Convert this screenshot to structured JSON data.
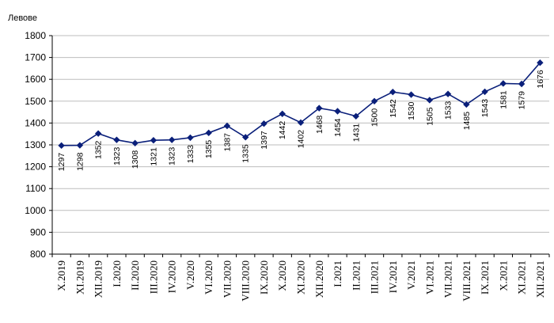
{
  "chart_data": {
    "type": "line",
    "ylabel": "Левове",
    "ylim": [
      800,
      1800
    ],
    "ytick_step": 100,
    "grid": "horizontal",
    "categories": [
      "X.2019",
      "XI.2019",
      "XII.2019",
      "I.2020",
      "II.2020",
      "III.2020",
      "IV.2020",
      "V.2020",
      "VI.2020",
      "VII.2020",
      "VIII.2020",
      "IX.2020",
      "X.2020",
      "XI.2020",
      "XII.2020",
      "I.2021",
      "II.2021",
      "III.2021",
      "IV.2021",
      "V.2021",
      "VI.2021",
      "VII.2021",
      "VIII.2021",
      "IX.2021",
      "X.2021",
      "XI.2021",
      "XII.2021"
    ],
    "series": [
      {
        "values": [
          1297,
          1298,
          1352,
          1323,
          1308,
          1321,
          1323,
          1333,
          1355,
          1387,
          1335,
          1397,
          1442,
          1402,
          1468,
          1454,
          1431,
          1500,
          1542,
          1530,
          1505,
          1533,
          1485,
          1543,
          1581,
          1579,
          1676
        ],
        "color": "#0a1f7a",
        "marker": "diamond"
      }
    ]
  }
}
